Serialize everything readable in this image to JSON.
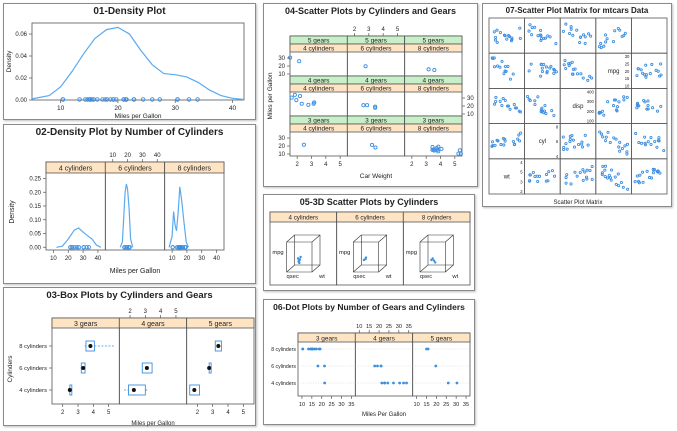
{
  "colors": {
    "point": "#3d8fe0",
    "line": "#5aaaf0",
    "strip_orange": "#ffe4c4",
    "strip_green": "#c8f0c8",
    "frame": "#555555"
  },
  "chart_data": [
    {
      "id": "p1",
      "type": "line",
      "title": "01-Density Plot",
      "xlabel": "Miles per Gallon",
      "ylabel": "Density",
      "xlim": [
        5,
        42
      ],
      "ylim": [
        0,
        0.07
      ],
      "xticks": [
        10,
        20,
        30,
        40
      ],
      "yticks": [
        "0.00",
        "0.02",
        "0.04",
        "0.06"
      ],
      "yticks_v": [
        0,
        0.02,
        0.04,
        0.06
      ],
      "density": [
        [
          5,
          0.001
        ],
        [
          8,
          0.004
        ],
        [
          10,
          0.012
        ],
        [
          12,
          0.026
        ],
        [
          14,
          0.042
        ],
        [
          16,
          0.056
        ],
        [
          18,
          0.064
        ],
        [
          20,
          0.066
        ],
        [
          22,
          0.06
        ],
        [
          24,
          0.045
        ],
        [
          26,
          0.032
        ],
        [
          28,
          0.024
        ],
        [
          30,
          0.023
        ],
        [
          32,
          0.021
        ],
        [
          34,
          0.016
        ],
        [
          36,
          0.009
        ],
        [
          38,
          0.004
        ],
        [
          40,
          0.0015
        ],
        [
          42,
          0.0005
        ]
      ],
      "rug": [
        10.4,
        10.4,
        13.3,
        14.3,
        14.7,
        15,
        15.2,
        15.2,
        15.5,
        15.8,
        16.4,
        17.3,
        17.8,
        18.1,
        18.7,
        19.2,
        19.2,
        19.7,
        21,
        21,
        21.4,
        21.4,
        21.5,
        22.8,
        22.8,
        24.4,
        26,
        27.3,
        30.4,
        30.4,
        32.4,
        33.9
      ]
    },
    {
      "id": "p2",
      "type": "line",
      "title": "02-Density Plot by Number of Cylinders",
      "xlabel": "Miles per Gallon",
      "ylabel": "Density",
      "strips": [
        "4 cylinders",
        "6 cylinders",
        "8 cylinders"
      ],
      "xlim": [
        5,
        45
      ],
      "ylim": [
        -0.01,
        0.27
      ],
      "xticks_bottom": [
        10,
        20,
        30,
        40
      ],
      "xticks_top": [
        10,
        20,
        30,
        40
      ],
      "yticks": [
        "0.00",
        "0.05",
        "0.10",
        "0.15",
        "0.20",
        "0.25"
      ],
      "yticks_v": [
        0,
        0.05,
        0.1,
        0.15,
        0.2,
        0.25
      ],
      "curves": [
        [
          [
            12,
            0
          ],
          [
            16,
            0.004
          ],
          [
            20,
            0.03
          ],
          [
            24,
            0.062
          ],
          [
            27,
            0.07
          ],
          [
            30,
            0.055
          ],
          [
            33,
            0.042
          ],
          [
            36,
            0.03
          ],
          [
            39,
            0.008
          ],
          [
            42,
            0
          ]
        ],
        [
          [
            15,
            0
          ],
          [
            16.5,
            0.02
          ],
          [
            17.5,
            0.12
          ],
          [
            18.3,
            0.2
          ],
          [
            19.2,
            0.23
          ],
          [
            20,
            0.21
          ],
          [
            21,
            0.14
          ],
          [
            22,
            0.03
          ],
          [
            23.5,
            0
          ]
        ],
        [
          [
            8,
            0
          ],
          [
            10,
            0.04
          ],
          [
            11,
            0.13
          ],
          [
            12,
            0.08
          ],
          [
            13,
            0.06
          ],
          [
            14,
            0.12
          ],
          [
            15.2,
            0.22
          ],
          [
            16.5,
            0.17
          ],
          [
            18,
            0.09
          ],
          [
            19.5,
            0.02
          ],
          [
            21,
            0
          ]
        ]
      ],
      "rugs": [
        [
          21.4,
          21.5,
          22.8,
          22.8,
          24.4,
          26,
          27.3,
          30.4,
          30.4,
          32.4,
          33.9
        ],
        [
          17.8,
          18.1,
          19.2,
          19.7,
          21,
          21,
          21.4
        ],
        [
          10.4,
          10.4,
          13.3,
          14.3,
          14.7,
          15,
          15.2,
          15.2,
          15.5,
          15.8,
          16.4,
          17.3,
          18.7,
          19.2
        ]
      ]
    },
    {
      "id": "p3",
      "type": "box",
      "title": "03-Box Plots by Cylinders and Gears",
      "xlabel": "Miles per Gallon",
      "ylabel": "Cylinders",
      "strips": [
        "3 gears",
        "4 gears",
        "5 gears"
      ],
      "categories": [
        "4 cylinders",
        "6 cylinders",
        "8 cylinders"
      ],
      "xlim": [
        1.3,
        5.7
      ],
      "xticks_bottom": [
        2,
        3,
        4,
        5
      ],
      "xticks_top": [
        2,
        3,
        4,
        5
      ],
      "boxes": [
        [
          {
            "q1": 2.465,
            "med": 2.465,
            "q3": 2.465
          },
          {
            "q1": 3.215,
            "med": 3.337,
            "q3": 3.46
          },
          {
            "q1": 3.52,
            "med": 3.81,
            "q3": 4.07,
            "wmin": 3.44,
            "wmax": 5.42
          }
        ],
        [
          {
            "q1": 1.9,
            "med": 2.25,
            "q3": 3.0,
            "wmin": 1.6,
            "wmax": 3.2
          },
          {
            "q1": 2.8,
            "med": 3.1,
            "q3": 3.44
          }
        ],
        [
          {
            "q1": 1.5,
            "med": 1.8,
            "q3": 2.14
          },
          {
            "q1": 2.77,
            "med": 2.77,
            "q3": 2.77
          },
          {
            "q1": 3.17,
            "med": 3.37,
            "q3": 3.57
          }
        ]
      ]
    },
    {
      "id": "p4",
      "type": "scatter",
      "title": "04-Scatter Plots by Cylinders and Gears",
      "xlabel": "Car Weight",
      "ylabel": "Miles per Gallon",
      "strips_top": [
        "5 gears",
        "4 gears",
        "3 gears"
      ],
      "strips_bottom": [
        "4 cylinders",
        "6 cylinders",
        "8 cylinders"
      ],
      "xlim": [
        1.5,
        5.5
      ],
      "ylim": [
        10,
        35
      ],
      "xticks_bottom": [
        2,
        3,
        4,
        5
      ],
      "xticks_top": [
        2,
        3,
        4,
        5
      ],
      "yticks_left": [
        10,
        20,
        30
      ],
      "yticks_right": [
        10,
        20,
        30
      ],
      "cells": [
        [
          [
            [
              1.51,
              30.4
            ],
            [
              2.14,
              26
            ]
          ],
          [
            [
              2.77,
              19.7
            ]
          ],
          [
            [
              3.17,
              15.8
            ],
            [
              3.57,
              15
            ]
          ]
        ],
        [
          [
            [
              1.62,
              30.4
            ],
            [
              1.84,
              33.9
            ],
            [
              1.94,
              27.3
            ],
            [
              2.2,
              32.4
            ],
            [
              2.32,
              22.8
            ],
            [
              2.78,
              21.4
            ],
            [
              3.19,
              24.4
            ],
            [
              3.15,
              22.8
            ]
          ],
          [
            [
              2.62,
              21
            ],
            [
              2.88,
              21
            ],
            [
              3.44,
              19.2
            ],
            [
              3.44,
              17.8
            ]
          ],
          []
        ],
        [
          [
            [
              2.47,
              21.5
            ]
          ],
          [
            [
              3.22,
              21.4
            ],
            [
              3.46,
              18.1
            ]
          ],
          [
            [
              3.44,
              18.7
            ],
            [
              3.57,
              14.3
            ],
            [
              4.07,
              16.4
            ],
            [
              3.73,
              17.3
            ],
            [
              3.78,
              15.2
            ],
            [
              5.25,
              10.4
            ],
            [
              5.42,
              10.4
            ],
            [
              5.35,
              14.7
            ],
            [
              3.52,
              15.5
            ],
            [
              3.44,
              15.2
            ],
            [
              3.84,
              13.3
            ],
            [
              3.85,
              19.2
            ]
          ]
        ]
      ]
    },
    {
      "id": "p5",
      "type": "scatter",
      "title": "05-3D Scatter Plots by Cylinders",
      "strips": [
        "4 cylinders",
        "6 cylinders",
        "8 cylinders"
      ],
      "axis_labels": [
        "mpg",
        "qsec",
        "wt"
      ]
    },
    {
      "id": "p6",
      "type": "scatter",
      "title": "06-Dot Plots by Number of Gears and Cylinders",
      "xlabel": "Miles Per Gallon",
      "strips": [
        "3 gears",
        "4 gears",
        "5 gears"
      ],
      "categories": [
        "4 cylinders",
        "6 cylinders",
        "8 cylinders"
      ],
      "xlim": [
        8,
        37
      ],
      "xticks_bottom": [
        10,
        15,
        20,
        25,
        30,
        35
      ],
      "xticks_top": [
        10,
        15,
        20,
        25,
        30,
        35
      ],
      "cells": [
        [
          [
            21.5
          ],
          [
            21.4,
            18.1
          ],
          [
            18.7,
            14.3,
            16.4,
            17.3,
            15.2,
            10.4,
            10.4,
            14.7,
            15.5,
            15.2,
            13.3,
            19.2
          ]
        ],
        [
          [
            22.8,
            24.4,
            22.8,
            32.4,
            30.4,
            33.9,
            27.3,
            21.4
          ],
          [
            21,
            21,
            19.2,
            17.8
          ],
          []
        ],
        [
          [
            26,
            30.4
          ],
          [
            19.7
          ],
          [
            15.8,
            15
          ]
        ]
      ]
    },
    {
      "id": "p7",
      "type": "scatter",
      "title": "07-Scatter Plot Matrix for mtcars Data",
      "xlabel": "Scatter Plot Matrix",
      "diag_labels": [
        "wt",
        "cyl",
        "disp",
        "mpg"
      ],
      "diag_ticks": [
        [
          "4",
          "5",
          "3",
          "2"
        ],
        [
          "8",
          "6",
          "4"
        ],
        [
          "400",
          "300",
          "200",
          "100"
        ],
        [
          "30",
          "25",
          "20",
          "15",
          "10"
        ]
      ]
    }
  ]
}
